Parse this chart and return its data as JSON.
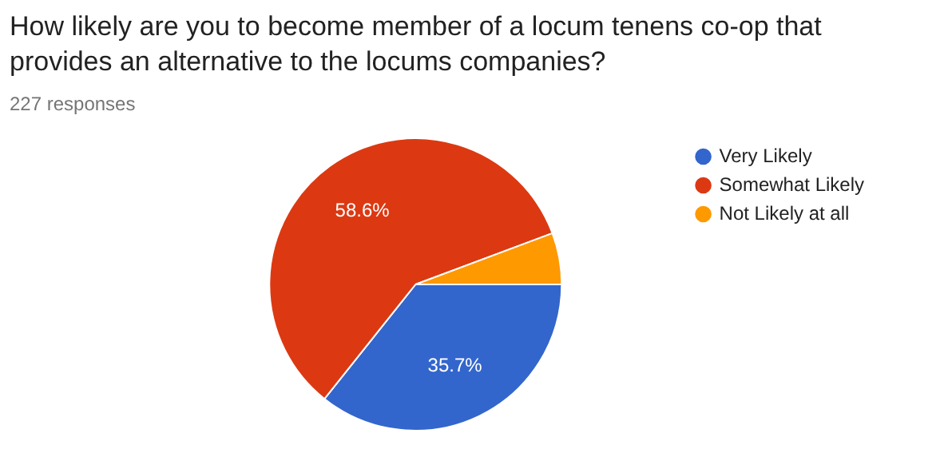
{
  "chart_data": {
    "type": "pie",
    "title": "How likely are you to become member of a locum tenens co-op that provides an alternative to the locums companies?",
    "subtitle": "227 responses",
    "categories": [
      "Very Likely",
      "Somewhat Likely",
      "Not Likely at all"
    ],
    "values": [
      35.7,
      58.6,
      5.7
    ],
    "colors": [
      "#3366cc",
      "#dc3912",
      "#ff9900"
    ],
    "value_labels": [
      "35.7%",
      "58.6%",
      null
    ],
    "legend": "right"
  }
}
